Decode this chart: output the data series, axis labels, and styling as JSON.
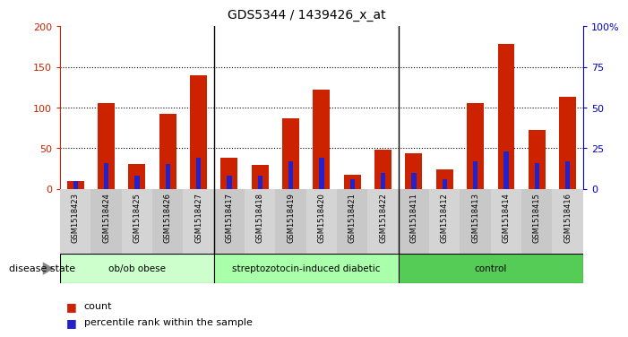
{
  "title": "GDS5344 / 1439426_x_at",
  "samples": [
    "GSM1518423",
    "GSM1518424",
    "GSM1518425",
    "GSM1518426",
    "GSM1518427",
    "GSM1518417",
    "GSM1518418",
    "GSM1518419",
    "GSM1518420",
    "GSM1518421",
    "GSM1518422",
    "GSM1518411",
    "GSM1518412",
    "GSM1518413",
    "GSM1518414",
    "GSM1518415",
    "GSM1518416"
  ],
  "count_values": [
    10,
    105,
    30,
    92,
    140,
    38,
    29,
    87,
    122,
    17,
    48,
    44,
    24,
    105,
    178,
    72,
    113
  ],
  "percentile_values": [
    5,
    16,
    8,
    15,
    19,
    8,
    8,
    17,
    19,
    6,
    10,
    10,
    6,
    17,
    23,
    16,
    17
  ],
  "groups": [
    {
      "label": "ob/ob obese",
      "start": 0,
      "end": 5,
      "color": "#ccffcc"
    },
    {
      "label": "streptozotocin-induced diabetic",
      "start": 5,
      "end": 11,
      "color": "#aaffaa"
    },
    {
      "label": "control",
      "start": 11,
      "end": 17,
      "color": "#55cc55"
    }
  ],
  "bar_color_red": "#cc2200",
  "bar_color_blue": "#2222cc",
  "left_ylim": [
    0,
    200
  ],
  "right_ylim": [
    0,
    100
  ],
  "left_yticks": [
    0,
    50,
    100,
    150,
    200
  ],
  "right_yticks": [
    0,
    25,
    50,
    75,
    100
  ],
  "right_yticklabels": [
    "0",
    "25",
    "50",
    "75",
    "100%"
  ],
  "bg_color_plot": "#ffffff",
  "xtick_bg": "#d0d0d0",
  "bg_color_fig": "#ffffff",
  "legend_count": "count",
  "legend_percentile": "percentile rank within the sample"
}
